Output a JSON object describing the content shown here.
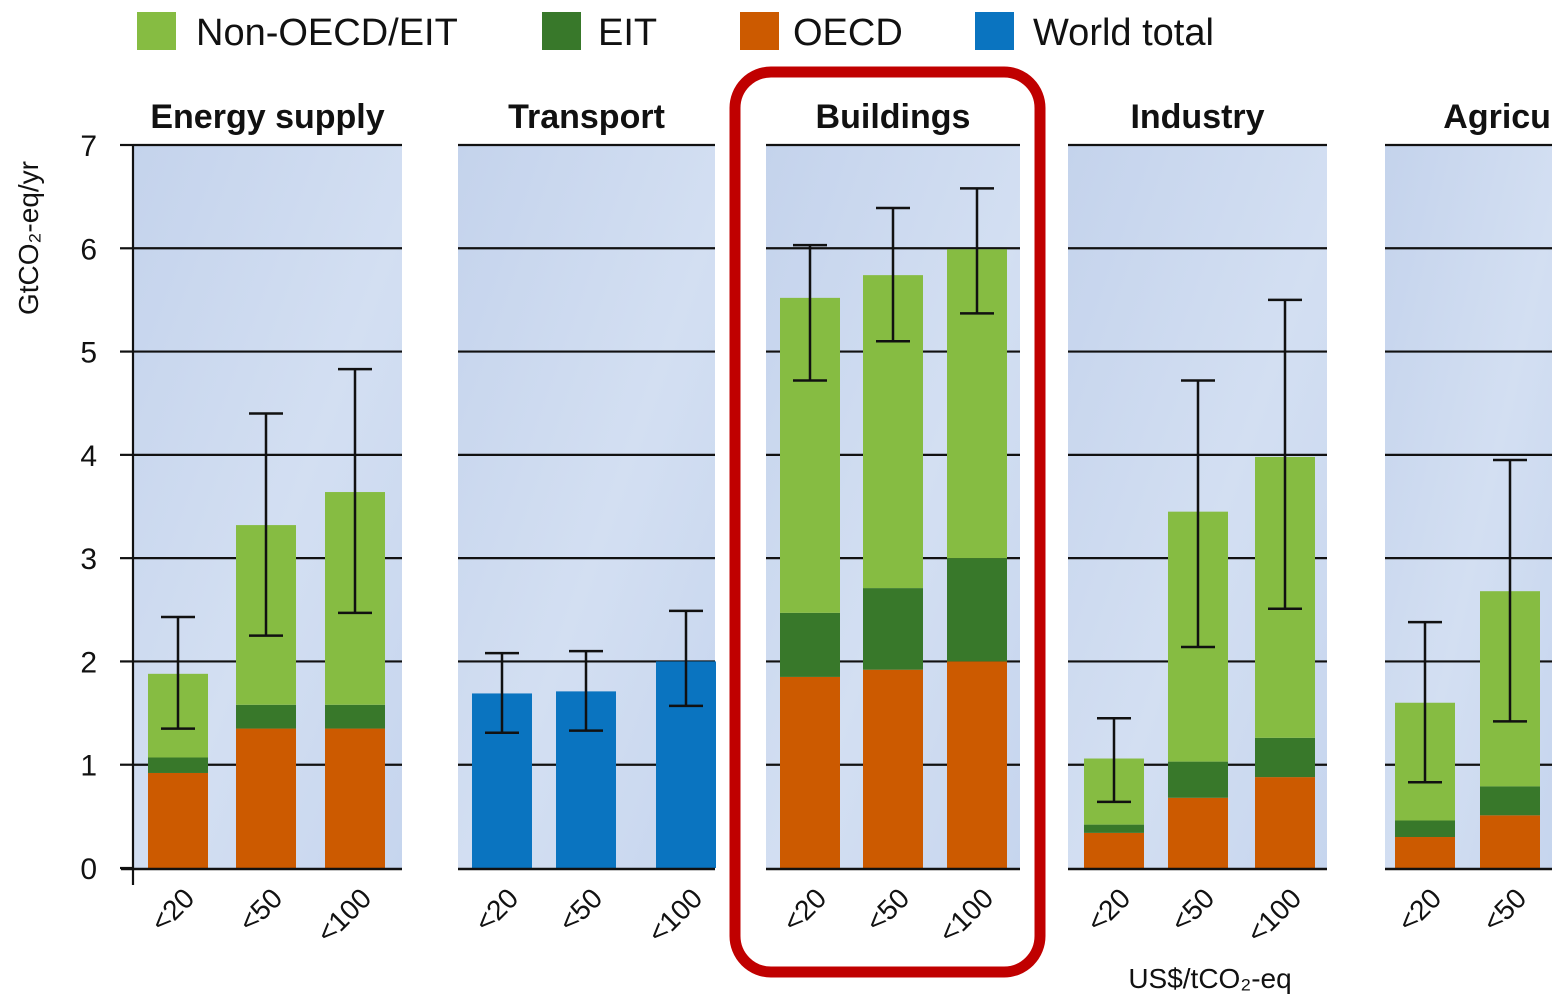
{
  "chart_data": {
    "type": "bar",
    "stacked": true,
    "ylabel": "GtCO₂-eq/yr",
    "xlabel": "US$/tCO₂-eq",
    "ylim": [
      0,
      7
    ],
    "yticks": [
      0,
      1,
      2,
      3,
      4,
      5,
      6,
      7
    ],
    "grid": true,
    "legend": {
      "placement": "top",
      "entries": [
        {
          "name": "Non-OECD/EIT",
          "color": "#86bc42"
        },
        {
          "name": "EIT",
          "color": "#38782a"
        },
        {
          "name": "OECD",
          "color": "#cc5a00"
        },
        {
          "name": "World total",
          "color": "#0a74c0"
        }
      ]
    },
    "highlight": {
      "panel": "Buildings",
      "color": "#c00000"
    },
    "categories": [
      "<20",
      "<50",
      "<100"
    ],
    "panels": [
      {
        "title": "Energy supply",
        "bars": [
          {
            "category": "<20",
            "OECD": 0.92,
            "EIT": 0.15,
            "Non-OECD/EIT": 0.81,
            "error": [
              1.35,
              2.43
            ]
          },
          {
            "category": "<50",
            "OECD": 1.35,
            "EIT": 0.23,
            "Non-OECD/EIT": 1.74,
            "error": [
              2.25,
              4.4
            ]
          },
          {
            "category": "<100",
            "OECD": 1.35,
            "EIT": 0.23,
            "Non-OECD/EIT": 2.06,
            "error": [
              2.47,
              4.83
            ]
          }
        ]
      },
      {
        "title": "Transport",
        "bars": [
          {
            "category": "<20",
            "World total": 1.69,
            "error": [
              1.31,
              2.08
            ]
          },
          {
            "category": "<50",
            "World total": 1.71,
            "error": [
              1.33,
              2.1
            ]
          },
          {
            "category": "<100",
            "World total": 2.0,
            "error": [
              1.57,
              2.49
            ]
          }
        ]
      },
      {
        "title": "Buildings",
        "bars": [
          {
            "category": "<20",
            "OECD": 1.85,
            "EIT": 0.62,
            "Non-OECD/EIT": 3.05,
            "error": [
              4.72,
              6.03
            ]
          },
          {
            "category": "<50",
            "OECD": 1.92,
            "EIT": 0.79,
            "Non-OECD/EIT": 3.03,
            "error": [
              5.1,
              6.39
            ]
          },
          {
            "category": "<100",
            "OECD": 2.0,
            "EIT": 1.0,
            "Non-OECD/EIT": 2.99,
            "error": [
              5.37,
              6.58
            ]
          }
        ]
      },
      {
        "title": "Industry",
        "bars": [
          {
            "category": "<20",
            "OECD": 0.34,
            "EIT": 0.08,
            "Non-OECD/EIT": 0.64,
            "error": [
              0.64,
              1.45
            ]
          },
          {
            "category": "<50",
            "OECD": 0.68,
            "EIT": 0.35,
            "Non-OECD/EIT": 2.42,
            "error": [
              2.14,
              4.72
            ]
          },
          {
            "category": "<100",
            "OECD": 0.88,
            "EIT": 0.38,
            "Non-OECD/EIT": 2.72,
            "error": [
              2.51,
              5.5
            ]
          }
        ]
      },
      {
        "title": "Agricult",
        "bars": [
          {
            "category": "<20",
            "OECD": 0.3,
            "EIT": 0.16,
            "Non-OECD/EIT": 1.14,
            "error": [
              0.83,
              2.38
            ]
          },
          {
            "category": "<50",
            "OECD": 0.51,
            "EIT": 0.28,
            "Non-OECD/EIT": 1.89,
            "error": [
              1.42,
              3.95
            ]
          }
        ]
      }
    ]
  }
}
